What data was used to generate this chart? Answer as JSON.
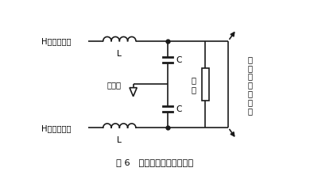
{
  "fig_width": 3.9,
  "fig_height": 2.32,
  "dpi": 100,
  "bg_color": "#ffffff",
  "line_color": "#1a1a1a",
  "line_width": 1.2,
  "caption": "图 6   输出滤波部分电路结构",
  "label_top_left": "H桥正输出端",
  "label_bottom_left": "H桥负输出端",
  "label_L_top": "L",
  "label_L_bottom": "L",
  "label_C_top": "C",
  "label_C_bottom": "C",
  "label_load": "负\n载",
  "label_ref_ground": "参考地",
  "label_right": "至\n电\n压\n采\n样\n电\n路"
}
